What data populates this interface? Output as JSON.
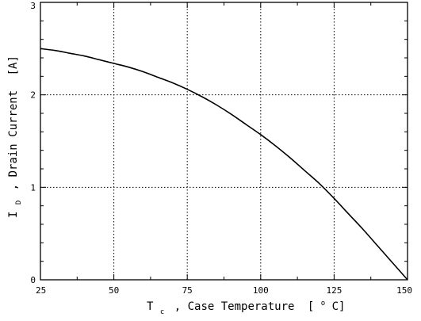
{
  "chart_data": {
    "type": "line",
    "xlabel": {
      "symbol": "T",
      "subscript": "c",
      "text": ", Case Temperature",
      "unit_open": "[",
      "unit_sup": "o",
      "unit": "C]"
    },
    "ylabel": {
      "symbol": "I",
      "subscript": "D",
      "text": ", Drain Current",
      "unit": "[A]"
    },
    "xlim": [
      25,
      150
    ],
    "ylim": [
      0,
      3
    ],
    "x_ticks": [
      "25",
      "50",
      "75",
      "100",
      "125",
      "150"
    ],
    "y_ticks": [
      "0",
      "1",
      "2",
      "3"
    ],
    "grid": true,
    "series": [
      {
        "x": [
          25,
          30,
          35,
          40,
          45,
          50,
          55,
          60,
          65,
          70,
          75,
          80,
          85,
          90,
          95,
          100,
          105,
          110,
          115,
          120,
          125,
          130,
          135,
          140,
          145,
          150
        ],
        "y": [
          2.5,
          2.48,
          2.45,
          2.42,
          2.38,
          2.34,
          2.3,
          2.25,
          2.19,
          2.13,
          2.06,
          1.98,
          1.89,
          1.79,
          1.68,
          1.57,
          1.45,
          1.32,
          1.18,
          1.04,
          0.88,
          0.71,
          0.54,
          0.36,
          0.18,
          0.0
        ]
      }
    ]
  }
}
